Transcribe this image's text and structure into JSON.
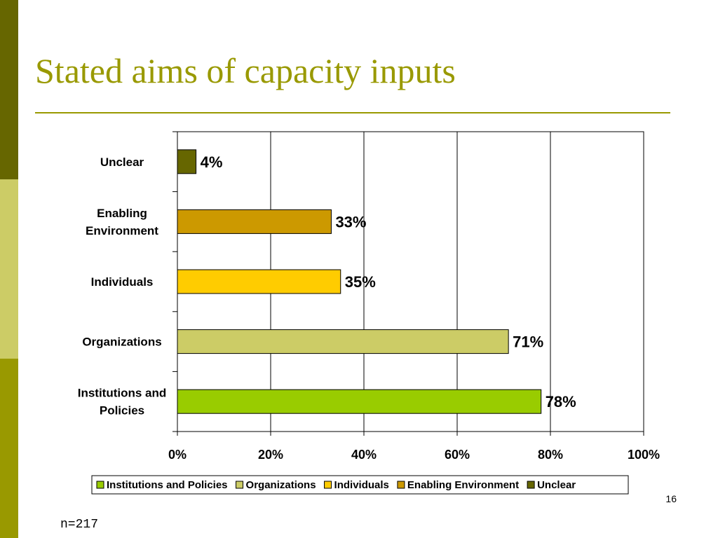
{
  "slide": {
    "title": "Stated aims of capacity inputs",
    "page_number": "16",
    "footnote": "n=217"
  },
  "colors": {
    "band_top": "#666600",
    "band_mid": "#cccc66",
    "band_bottom": "#999900",
    "title": "#999900"
  },
  "chart_data": {
    "type": "bar",
    "orientation": "horizontal",
    "title": "",
    "xlabel": "",
    "ylabel": "",
    "xlim": [
      0,
      100
    ],
    "x_ticks": [
      "0%",
      "20%",
      "40%",
      "60%",
      "80%",
      "100%"
    ],
    "grid": true,
    "legend_position": "bottom",
    "categories": [
      {
        "label_lines": [
          "Unclear"
        ],
        "value": 4,
        "display": "4%",
        "color": "#666600",
        "legend": "Unclear"
      },
      {
        "label_lines": [
          "Enabling",
          "Environment"
        ],
        "value": 33,
        "display": "33%",
        "color": "#cc9900",
        "legend": "Enabling Environment"
      },
      {
        "label_lines": [
          "Individuals"
        ],
        "value": 35,
        "display": "35%",
        "color": "#ffcc00",
        "legend": "Individuals"
      },
      {
        "label_lines": [
          "Organizations"
        ],
        "value": 71,
        "display": "71%",
        "color": "#cccc66",
        "legend": "Organizations"
      },
      {
        "label_lines": [
          "Institutions and",
          "Policies"
        ],
        "value": 78,
        "display": "78%",
        "color": "#99cc00",
        "legend": "Institutions and Policies"
      }
    ],
    "legend_order": [
      "Institutions and Policies",
      "Organizations",
      "Individuals",
      "Enabling Environment",
      "Unclear"
    ]
  }
}
